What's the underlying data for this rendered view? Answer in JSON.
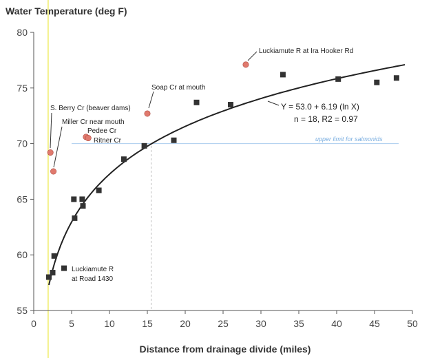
{
  "chart_data": {
    "type": "scatter",
    "title": "Water Temperature (deg F)",
    "xlabel": "Distance from drainage divide (miles)",
    "ylabel": "",
    "xlim": [
      0,
      50
    ],
    "ylim": [
      55,
      80
    ],
    "xticks": [
      0,
      5,
      10,
      15,
      20,
      25,
      30,
      35,
      40,
      45,
      50
    ],
    "yticks": [
      55,
      60,
      65,
      70,
      75,
      80
    ],
    "grid": false,
    "series": [
      {
        "marker": "square",
        "color": "#333333",
        "points": [
          {
            "x": 2.0,
            "y": 58.0
          },
          {
            "x": 2.5,
            "y": 58.4
          },
          {
            "x": 2.7,
            "y": 59.9
          },
          {
            "x": 5.3,
            "y": 65.0
          },
          {
            "x": 5.4,
            "y": 63.3
          },
          {
            "x": 6.4,
            "y": 65.0
          },
          {
            "x": 6.5,
            "y": 64.4
          },
          {
            "x": 8.6,
            "y": 65.8
          },
          {
            "x": 11.9,
            "y": 68.6
          },
          {
            "x": 14.6,
            "y": 69.8
          },
          {
            "x": 18.5,
            "y": 70.3
          },
          {
            "x": 21.5,
            "y": 73.7
          },
          {
            "x": 26.0,
            "y": 73.5
          },
          {
            "x": 32.9,
            "y": 76.2
          },
          {
            "x": 40.2,
            "y": 75.8
          },
          {
            "x": 45.3,
            "y": 75.5
          },
          {
            "x": 47.9,
            "y": 75.9
          },
          {
            "x": 4.0,
            "y": 58.8
          }
        ]
      },
      {
        "marker": "circle",
        "color": "#e07a6e",
        "points": [
          {
            "x": 2.2,
            "y": 69.2
          },
          {
            "x": 2.6,
            "y": 67.5
          },
          {
            "x": 6.9,
            "y": 70.6
          },
          {
            "x": 7.2,
            "y": 70.5
          },
          {
            "x": 15.0,
            "y": 72.7
          },
          {
            "x": 28.0,
            "y": 77.1
          }
        ]
      }
    ],
    "fit": {
      "a": 53.0,
      "b": 6.19,
      "x_from": 2.0,
      "x_to": 49.0
    },
    "reference_line": {
      "y": 70.0,
      "label": "upper limit for salmonids",
      "color": "#a9cbee"
    },
    "vertical_guides": [
      {
        "x": 1.9,
        "color": "#f3f08a"
      },
      {
        "x": 15.5,
        "color": "#bbbbbb"
      }
    ],
    "equation_lines": [
      "Y = 53.0 + 6.19 (ln X)",
      "n = 18, R2 = 0.97"
    ],
    "annotations": [
      "Luckiamute R at Ira Hooker Rd",
      "Soap Cr at mouth",
      "S. Berry Cr (beaver dams)",
      "Miller Cr near mouth",
      "Pedee Cr",
      "Ritner Cr",
      "Luckiamute R",
      "at Road 1430"
    ]
  }
}
